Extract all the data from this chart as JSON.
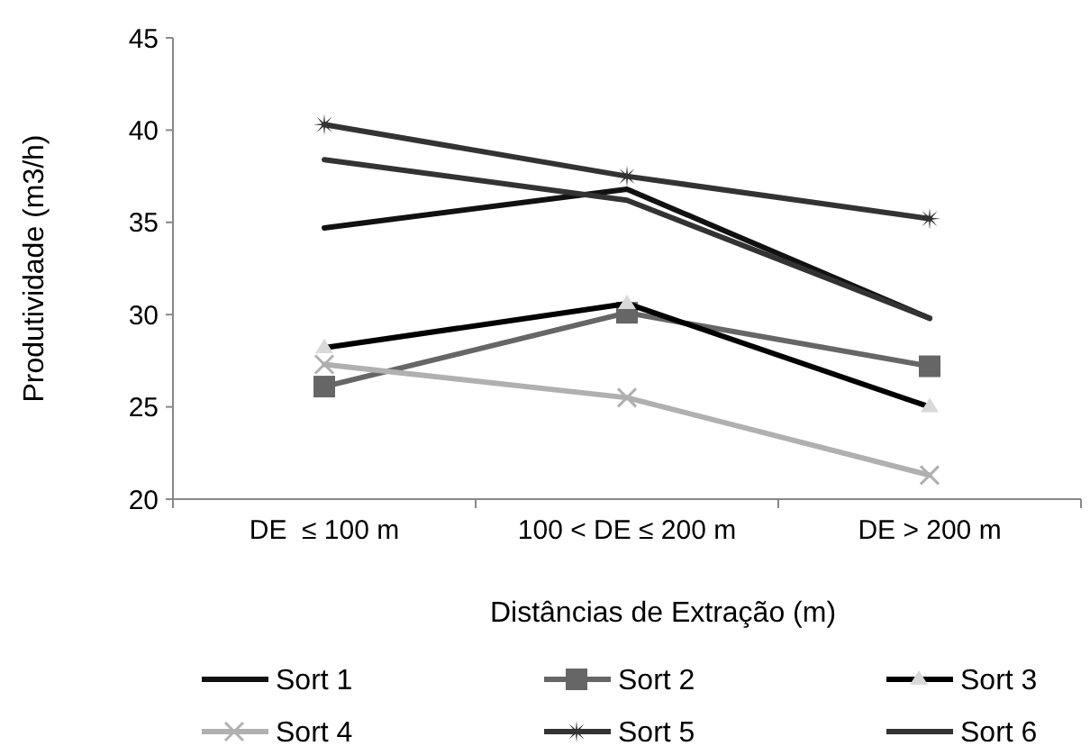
{
  "chart_data": {
    "type": "line",
    "xlabel": "Distâncias de Extração (m)",
    "ylabel": "Produtividade (m3/h)",
    "categories": [
      "DE  ≤ 100 m",
      "100 < DE ≤ 200 m",
      "DE > 200 m"
    ],
    "ylim": [
      20,
      45
    ],
    "yticks": [
      20,
      25,
      30,
      35,
      40,
      45
    ],
    "grid": false,
    "legend": "bottom",
    "series": [
      {
        "name": "Sort 1",
        "color": "#111111",
        "marker": "none",
        "values": [
          34.7,
          36.8,
          29.8
        ]
      },
      {
        "name": "Sort 2",
        "color": "#666666",
        "marker": "square",
        "values": [
          26.1,
          30.1,
          27.2
        ]
      },
      {
        "name": "Sort 3",
        "color": "#000000",
        "marker": "triangle",
        "values": [
          28.2,
          30.6,
          25.0
        ]
      },
      {
        "name": "Sort 4",
        "color": "#b0b0b0",
        "marker": "cross",
        "values": [
          27.3,
          25.5,
          21.3
        ]
      },
      {
        "name": "Sort 5",
        "color": "#333333",
        "marker": "star",
        "values": [
          40.3,
          37.5,
          35.2
        ]
      },
      {
        "name": "Sort 6",
        "color": "#333333",
        "marker": "none",
        "values": [
          38.4,
          36.2,
          29.8
        ]
      }
    ]
  }
}
